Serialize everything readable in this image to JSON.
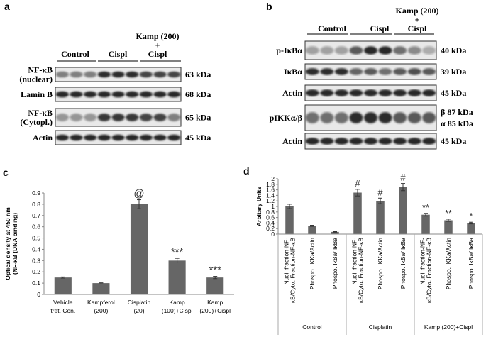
{
  "panel_a": {
    "label": "a",
    "groups": [
      [
        "Control"
      ],
      [
        "Cispl"
      ],
      [
        "Kamp (200)",
        "+",
        "Cispl"
      ]
    ],
    "rows": [
      {
        "label": [
          "NF-κB",
          "(nuclear)"
        ],
        "size": [
          "63 kDa"
        ]
      },
      {
        "label": [
          "Lamin B"
        ],
        "size": [
          "68 kDa"
        ]
      },
      {
        "label": [
          "NF-κB",
          "(Cytopl.)"
        ],
        "size": [
          "65 kDa"
        ]
      },
      {
        "label": [
          "Actin"
        ],
        "size": [
          "45 kDa"
        ]
      }
    ]
  },
  "panel_b": {
    "label": "b",
    "groups": [
      [
        "Control"
      ],
      [
        "Cispl"
      ],
      [
        "Kamp (200)",
        "+",
        "Cispl"
      ]
    ],
    "rows": [
      {
        "label": [
          "p-IκBα"
        ],
        "size": [
          "40 kDa"
        ]
      },
      {
        "label": [
          "IκBα"
        ],
        "size": [
          "39 kDa"
        ]
      },
      {
        "label": [
          "Actin"
        ],
        "size": [
          "45 kDa"
        ]
      },
      {
        "label": [
          "pIKKα/β"
        ],
        "size": [
          "β 87 kDa",
          "α 85 kDa"
        ]
      },
      {
        "label": [
          "Actin"
        ],
        "size": [
          "45 kDa"
        ]
      }
    ]
  },
  "chart_data": [
    {
      "type": "bar",
      "label": "c",
      "ylabel": [
        "Optical density at 450 nm",
        "(NF-κB (DNA binding)"
      ],
      "categories": [
        [
          "Vehicle",
          "tret. Con."
        ],
        [
          "Kampferol",
          "(200)"
        ],
        [
          "Cisplatin",
          "(20)"
        ],
        [
          "Kamp",
          "(100)+Cispl"
        ],
        [
          "Kamp",
          "(200)+Cispl"
        ]
      ],
      "values": [
        0.15,
        0.1,
        0.8,
        0.3,
        0.15
      ],
      "errors": [
        0.005,
        0.005,
        0.04,
        0.02,
        0.01
      ],
      "annotations": [
        null,
        null,
        "@",
        "***",
        "***"
      ],
      "color": "#666666",
      "ylim": [
        0,
        0.9
      ],
      "yticks": [
        0,
        0.1,
        0.2,
        0.3,
        0.4,
        0.5,
        0.6,
        0.7,
        0.8,
        0.9
      ]
    },
    {
      "type": "bar",
      "label": "d",
      "ylabel": [
        "Arbitary Units"
      ],
      "categories": [
        [
          "Nucl. fraction-NF-",
          "κB/Cyto. Fraction-NF-κB"
        ],
        [
          "Phospo. IKKa/Actin"
        ],
        [
          "Phospo. IκBa/ IκBa"
        ],
        [
          "Nucl. fraction-NF-",
          "κB/Cyto. Fraction-NF-κB"
        ],
        [
          "Phospo. IKKa/Actin"
        ],
        [
          "Phospo. IκBa/ IκBa"
        ],
        [
          "Nucl. fraction-NF-",
          "κB/Cyto. Fraction-NF-κB"
        ],
        [
          "Phospo. IKKa/Actin"
        ],
        [
          "Phospo. IκBa/ IκBa"
        ]
      ],
      "groups": [
        "Control",
        "Cisplatin",
        "Kamp (200)+Cispl"
      ],
      "values": [
        1.0,
        0.3,
        0.08,
        1.5,
        1.2,
        1.7,
        0.7,
        0.5,
        0.4
      ],
      "errors": [
        0.08,
        0.02,
        0.01,
        0.12,
        0.1,
        0.13,
        0.05,
        0.04,
        0.03
      ],
      "annotations": [
        null,
        null,
        null,
        "#",
        "#",
        "#",
        "**",
        "**",
        "*"
      ],
      "color": "#666666",
      "ylim": [
        0,
        2
      ],
      "yticks": [
        0,
        0.2,
        0.4,
        0.6,
        0.8,
        1,
        1.2,
        1.4,
        1.6,
        1.8,
        2
      ]
    }
  ]
}
